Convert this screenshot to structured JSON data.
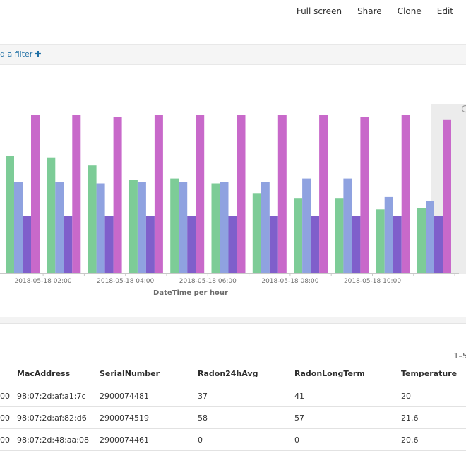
{
  "toolbar": {
    "full_screen": "Full screen",
    "share": "Share",
    "clone": "Clone",
    "edit": "Edit"
  },
  "filter": {
    "add_filter_label": "d a filter",
    "add_icon": "plus-icon"
  },
  "chart_data": {
    "type": "bar",
    "xlabel": "DateTime per hour",
    "x_tick_labels": [
      "2018-05-18 02:00",
      "2018-05-18 04:00",
      "2018-05-18 06:00",
      "2018-05-18 08:00",
      "2018-05-18 10:00"
    ],
    "ylim": [
      0,
      100
    ],
    "grid": false,
    "legend": "none",
    "series_colors": [
      "#7dcc97",
      "#8fa2e0",
      "#7f5fcb",
      "#c869ca"
    ],
    "series": [
      {
        "values": [
          72,
          71,
          66,
          57,
          58,
          55,
          49,
          46,
          46,
          39,
          40
        ]
      },
      {
        "values": [
          56,
          56,
          55,
          56,
          56,
          56,
          56,
          58,
          58,
          47,
          44
        ]
      },
      {
        "values": [
          35,
          35,
          35,
          35,
          35,
          35,
          35,
          35,
          35,
          35,
          35
        ]
      },
      {
        "values": [
          97,
          97,
          96,
          97,
          97,
          97,
          97,
          97,
          96,
          97,
          94
        ]
      }
    ]
  },
  "table": {
    "pager": "1–5",
    "columns": [
      "MacAddress",
      "SerialNumber",
      "Radon24hAvg",
      "RadonLongTerm",
      "Temperature"
    ],
    "first_col_fragment": "00",
    "rows": [
      {
        "mac": "98:07:2d:af:a1:7c",
        "serial": "2900074481",
        "r24": "37",
        "rlt": "41",
        "temp": "20"
      },
      {
        "mac": "98:07:2d:af:82:d6",
        "serial": "2900074519",
        "r24": "58",
        "rlt": "57",
        "temp": "21.6"
      },
      {
        "mac": "98:07:2d:48:aa:08",
        "serial": "2900074461",
        "r24": "0",
        "rlt": "0",
        "temp": "20.6"
      }
    ]
  }
}
